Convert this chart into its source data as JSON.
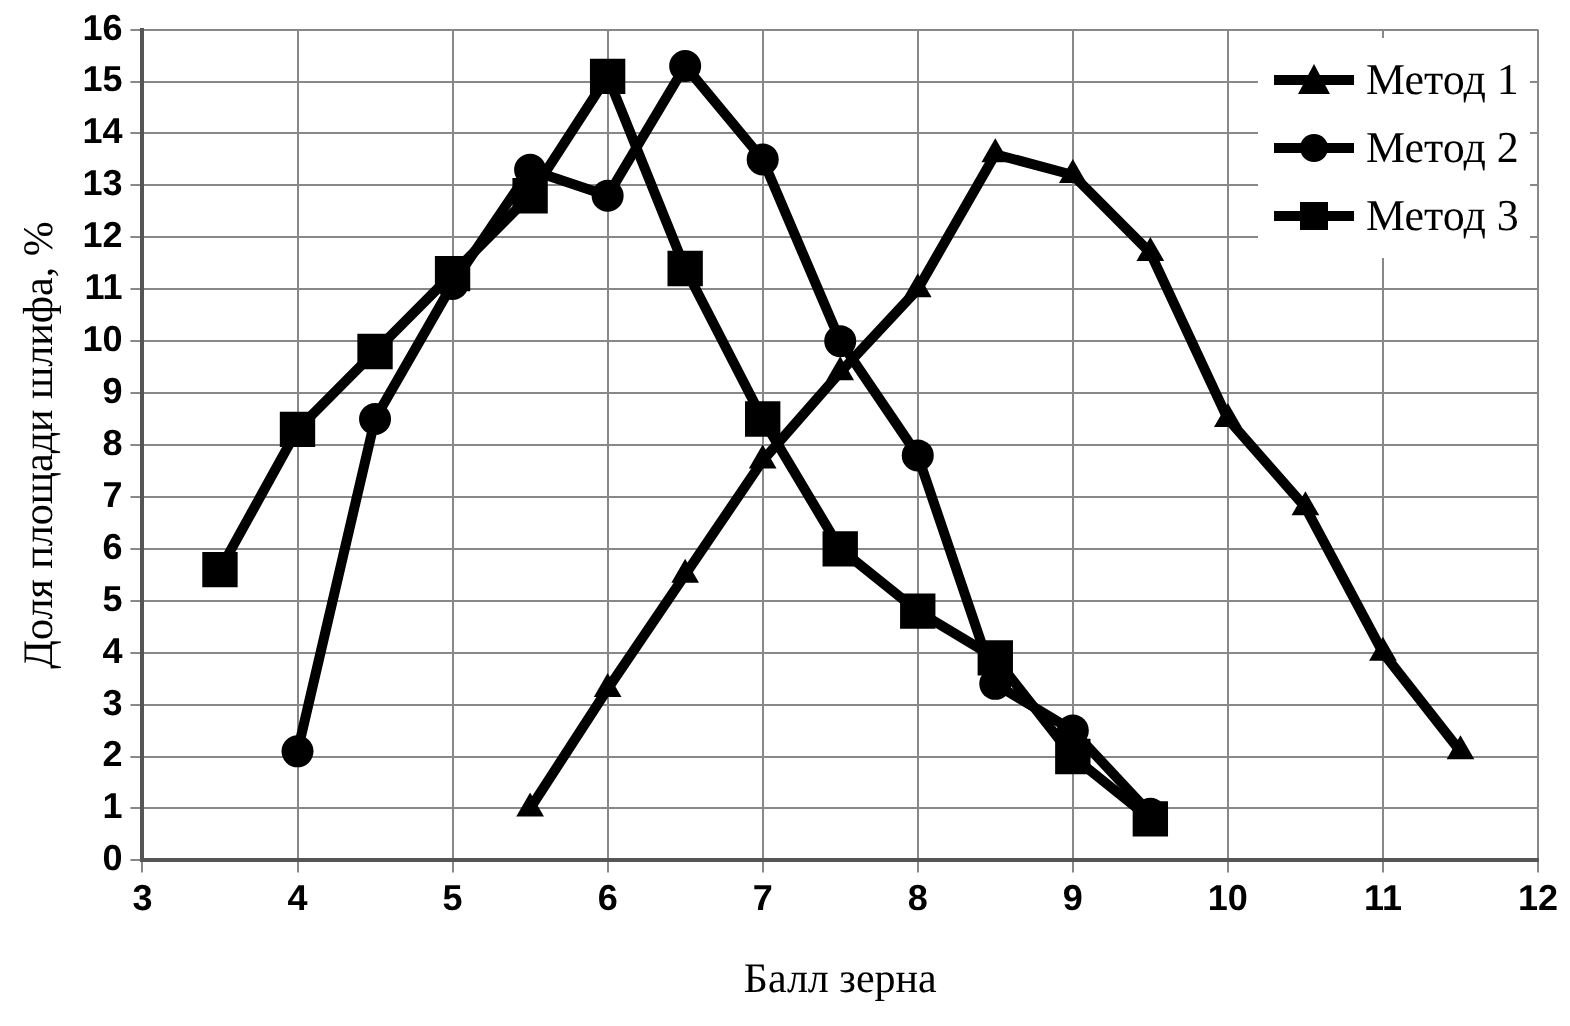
{
  "chart_data": {
    "type": "line",
    "xlabel": "Балл зерна",
    "ylabel": "Доля площади шлифа, %",
    "xlim": [
      3,
      12
    ],
    "xticks": [
      3,
      4,
      5,
      6,
      7,
      8,
      9,
      10,
      11,
      12
    ],
    "ylim": [
      0,
      16
    ],
    "yticks": [
      0,
      1,
      2,
      3,
      4,
      5,
      6,
      7,
      8,
      9,
      10,
      11,
      12,
      13,
      14,
      15,
      16
    ],
    "grid": true,
    "legend": "top right",
    "line_style": "solid",
    "series": [
      {
        "name": "Метод 1",
        "color": "#000000",
        "marker": "triangle",
        "x": [
          5.5,
          6,
          6.5,
          7,
          7.5,
          8,
          8.5,
          9,
          9.5,
          10,
          10.5,
          11,
          11.5
        ],
        "values": [
          1.0,
          3.3,
          5.5,
          7.7,
          9.4,
          11.0,
          13.6,
          13.2,
          11.7,
          8.5,
          6.8,
          4.0,
          2.1
        ]
      },
      {
        "name": "Метод 2",
        "color": "#000000",
        "marker": "circle",
        "x": [
          4,
          4.5,
          5,
          5.5,
          6,
          6.5,
          7,
          7.5,
          8,
          8.5,
          9,
          9.5
        ],
        "values": [
          2.1,
          8.5,
          11.1,
          13.3,
          12.8,
          15.3,
          13.5,
          10.0,
          7.8,
          3.4,
          2.5,
          0.9
        ]
      },
      {
        "name": "Метод 3",
        "color": "#000000",
        "marker": "square",
        "x": [
          3.5,
          4,
          4.5,
          5,
          5.5,
          6,
          6.5,
          7,
          7.5,
          8,
          8.5,
          9,
          9.5
        ],
        "values": [
          5.6,
          8.3,
          9.8,
          11.3,
          12.8,
          15.1,
          11.4,
          8.5,
          6.0,
          4.8,
          3.9,
          2.0,
          0.8
        ]
      }
    ]
  }
}
